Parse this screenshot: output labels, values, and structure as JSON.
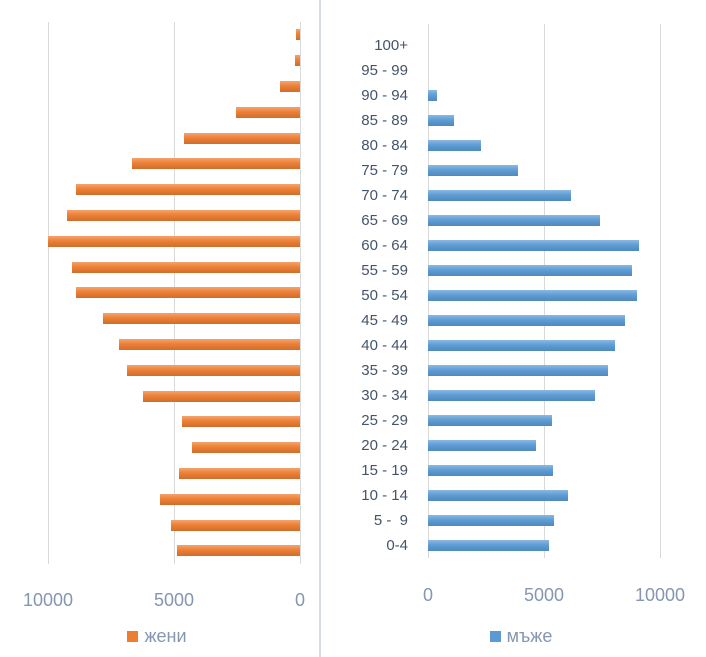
{
  "chart_data": [
    {
      "type": "bar",
      "name": "women",
      "title": "",
      "legend": "жени",
      "orientation": "horizontal",
      "side": "left",
      "axis_reversed": true,
      "bar_color": "#ED7D31",
      "categories": [
        "100+",
        "95 - 99",
        "90 - 94",
        "85 - 89",
        "80 - 84",
        "75 - 79",
        "70 - 74",
        "65 - 69",
        "60 - 64",
        "55 - 59",
        "50 - 54",
        "45 - 49",
        "40 - 44",
        "35 - 39",
        "30 - 34",
        "25 - 29",
        "20 - 24",
        "15 - 19",
        "10 - 14",
        "5 -  9",
        "0-4"
      ],
      "values": [
        150,
        200,
        800,
        2550,
        4600,
        6650,
        8900,
        9250,
        10000,
        9050,
        8900,
        7800,
        7200,
        6850,
        6250,
        4700,
        4300,
        4800,
        5550,
        5100,
        4900
      ],
      "x_tick_labels": [
        "10000",
        "5000",
        "0"
      ],
      "x_tick_values": [
        10000,
        5000,
        0
      ],
      "xlim": [
        0,
        10900
      ],
      "grid": true,
      "categories_shown": false,
      "legend_position": "bottom"
    },
    {
      "type": "bar",
      "name": "men",
      "title": "",
      "legend": "мъже",
      "orientation": "horizontal",
      "side": "right",
      "axis_reversed": false,
      "bar_color": "#5B9BD5",
      "categories": [
        "100+",
        "95 - 99",
        "90 - 94",
        "85 - 89",
        "80 - 84",
        "75 - 79",
        "70 - 74",
        "65 - 69",
        "60 - 64",
        "55 - 59",
        "50 - 54",
        "45 - 49",
        "40 - 44",
        "35 - 39",
        "30 - 34",
        "25 - 29",
        "20 - 24",
        "15 - 19",
        "10 - 14",
        "5 -  9",
        "0-4"
      ],
      "values": [
        0,
        0,
        400,
        1100,
        2300,
        3900,
        6150,
        7400,
        9100,
        8800,
        9000,
        8500,
        8050,
        7750,
        7200,
        5350,
        4650,
        5400,
        6050,
        5450,
        5200
      ],
      "x_tick_labels": [
        "0",
        "5000",
        "10000"
      ],
      "x_tick_values": [
        0,
        5000,
        10000
      ],
      "xlim": [
        0,
        11600
      ],
      "grid": true,
      "categories_shown": true,
      "legend_position": "bottom"
    }
  ],
  "colors": {
    "women_bar": "#ED7D31",
    "men_bar": "#5B9BD5",
    "gridline": "#D9D9D9",
    "axis_tick_label": "#8496B0",
    "category_label": "#44546A",
    "legend_label": "#8496B0",
    "divider": "#D8DDE4",
    "background": "#FFFFFF"
  }
}
